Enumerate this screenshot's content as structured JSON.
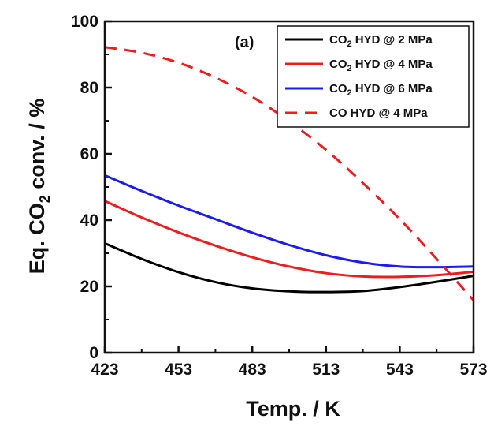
{
  "chart_data": {
    "type": "line",
    "panel_label": "(a)",
    "xlabel": "Temp. / K",
    "ylabel_parts": [
      "Eq. CO",
      "2",
      " conv. / %"
    ],
    "xlim": [
      423,
      573
    ],
    "ylim": [
      0,
      100
    ],
    "xticks": [
      423,
      453,
      483,
      513,
      543,
      573
    ],
    "yticks": [
      0,
      20,
      40,
      60,
      80,
      100
    ],
    "grid": false,
    "legend_position": "top-right",
    "series": [
      {
        "name": "CO2 HYD @ 2 MPa",
        "legend_parts": [
          "CO",
          "2",
          " HYD @ 2 MPa"
        ],
        "color": "#000000",
        "dash": "solid",
        "x": [
          423,
          438,
          453,
          468,
          483,
          498,
          513,
          528,
          543,
          558,
          573
        ],
        "y": [
          33,
          28.3,
          24.3,
          21.3,
          19.4,
          18.5,
          18.3,
          18.6,
          19.8,
          21.4,
          23.2
        ]
      },
      {
        "name": "CO2 HYD @ 4 MPa",
        "legend_parts": [
          "CO",
          "2",
          " HYD @ 4 MPa"
        ],
        "color": "#ee1c1c",
        "dash": "solid",
        "x": [
          423,
          438,
          453,
          468,
          483,
          498,
          513,
          528,
          543,
          558,
          573
        ],
        "y": [
          45.8,
          40.8,
          36.3,
          32.3,
          28.8,
          26,
          24,
          23,
          22.9,
          23.4,
          24.4
        ]
      },
      {
        "name": "CO2 HYD @ 6 MPa",
        "legend_parts": [
          "CO",
          "2",
          " HYD @ 6 MPa"
        ],
        "color": "#1c1cf0",
        "dash": "solid",
        "x": [
          423,
          438,
          453,
          468,
          483,
          498,
          513,
          528,
          543,
          558,
          573
        ],
        "y": [
          53.5,
          48.8,
          44.4,
          40.3,
          36.2,
          32.5,
          29.4,
          27.2,
          26,
          25.8,
          26
        ]
      },
      {
        "name": "CO HYD @ 4 MPa",
        "legend_parts": [
          "CO HYD @ 4 MPa"
        ],
        "color": "#ee1c1c",
        "dash": "dashed",
        "x": [
          423,
          438,
          453,
          468,
          483,
          498,
          513,
          528,
          543,
          558,
          573
        ],
        "y": [
          92.2,
          90.5,
          87.5,
          83,
          77.2,
          69.8,
          61.2,
          51.2,
          40.3,
          28.3,
          15.8
        ]
      }
    ]
  }
}
